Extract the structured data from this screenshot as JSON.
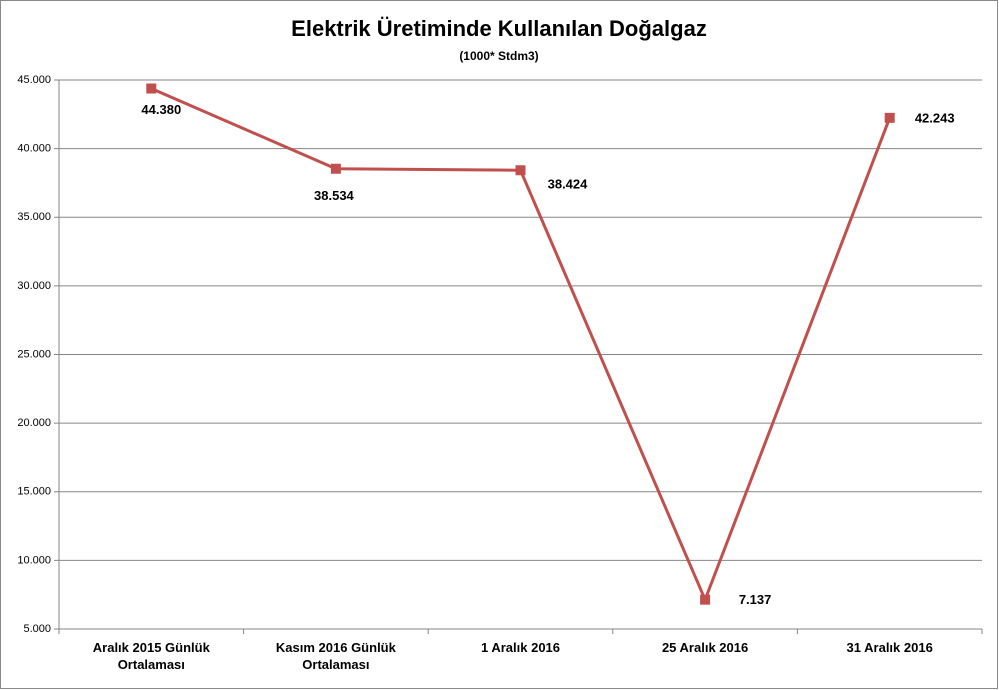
{
  "chart_data": {
    "type": "line",
    "title": "Elektrik Üretiminde Kullanılan Doğalgaz",
    "subtitle": "(1000* Stdm3)",
    "categories": [
      "Aralık 2015 Günlük Ortalaması",
      "Kasım 2016 Günlük Ortalaması",
      "1 Aralık 2016",
      "25 Aralık 2016",
      "31 Aralık 2016"
    ],
    "values": [
      44380,
      38534,
      38424,
      7137,
      42243
    ],
    "value_labels": [
      "44.380",
      "38.534",
      "38.424",
      "7.137",
      "42.243"
    ],
    "color": "#c0504d",
    "ylim": [
      5000,
      45000
    ],
    "yticks": [
      {
        "value": 5000,
        "label": "5.000"
      },
      {
        "value": 10000,
        "label": "10.000"
      },
      {
        "value": 15000,
        "label": "15.000"
      },
      {
        "value": 20000,
        "label": "20.000"
      },
      {
        "value": 25000,
        "label": "25.000"
      },
      {
        "value": 30000,
        "label": "30.000"
      },
      {
        "value": 35000,
        "label": "35.000"
      },
      {
        "value": 40000,
        "label": "40.000"
      },
      {
        "value": 45000,
        "label": "45.000"
      }
    ],
    "grid": true
  }
}
